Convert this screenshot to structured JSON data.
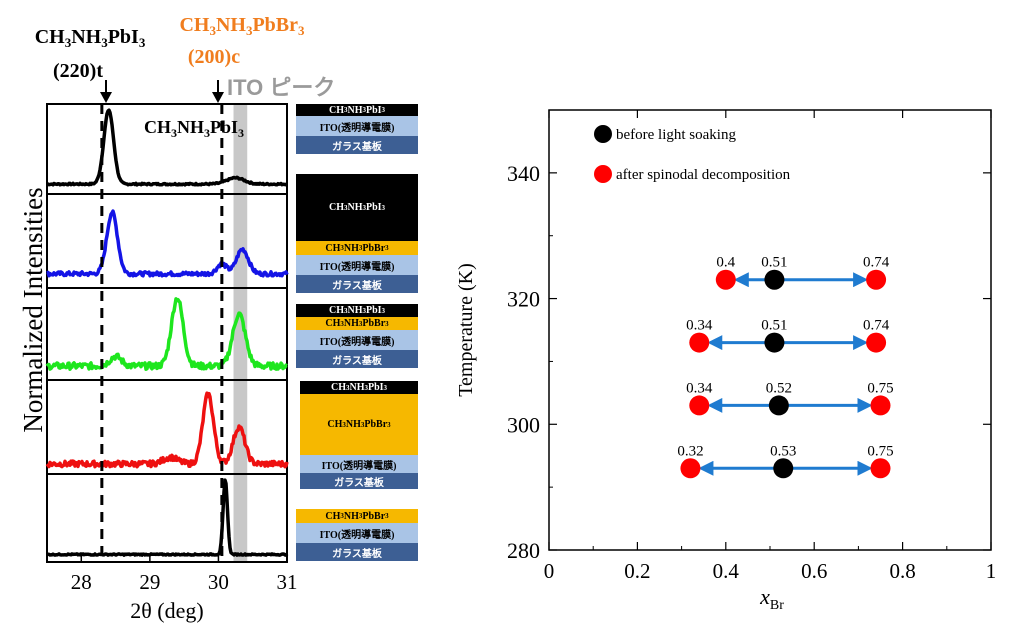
{
  "left_panel": {
    "ylabel": "Normalized Intensities",
    "xlabel": "2θ (deg)",
    "xticks": [
      "28",
      "29",
      "30",
      "31"
    ],
    "annotations": {
      "mapi_name": "CH3NH3PbI3",
      "mapi_peak": "(220)t",
      "mapbbr_name": "CH3NH3PbBr3",
      "mapbbr_peak": "(200)c",
      "ito_peak": "ITO ピーク",
      "panel1_label": "CH3NH3PbI3"
    },
    "colors": {
      "mapbbr_label": "#f07d1e",
      "ito_label": "#9a9a9a",
      "ito_band": "#c8c8c8",
      "traces": [
        "#000000",
        "#1414e6",
        "#1ee61e",
        "#ee1010",
        "#000000"
      ]
    }
  },
  "stacks": [
    {
      "layers": [
        {
          "text": "CH3NH3PbI3",
          "bg": "#000000",
          "fg": "#ffffff",
          "h": 12
        },
        {
          "text": "ITO(透明導電膜)",
          "bg": "#a9c4e6",
          "fg": "#000000",
          "h": 20
        },
        {
          "text": "ガラス基板",
          "bg": "#3d5f94",
          "fg": "#ffffff",
          "h": 18
        }
      ]
    },
    {
      "layers": [
        {
          "text": "CH3NH3PbI3",
          "bg": "#000000",
          "fg": "#ffffff",
          "h": 67
        },
        {
          "text": "CH3NH3PbBr3",
          "bg": "#f6b800",
          "fg": "#000000",
          "h": 14
        },
        {
          "text": "ITO(透明導電膜)",
          "bg": "#a9c4e6",
          "fg": "#000000",
          "h": 20
        },
        {
          "text": "ガラス基板",
          "bg": "#3d5f94",
          "fg": "#ffffff",
          "h": 18
        }
      ]
    },
    {
      "layers": [
        {
          "text": "CH3NH3PbI3",
          "bg": "#000000",
          "fg": "#ffffff",
          "h": 13
        },
        {
          "text": "CH3NH3PbBr3",
          "bg": "#f6b800",
          "fg": "#000000",
          "h": 13
        },
        {
          "text": "ITO(透明導電膜)",
          "bg": "#a9c4e6",
          "fg": "#000000",
          "h": 20
        },
        {
          "text": "ガラス基板",
          "bg": "#3d5f94",
          "fg": "#ffffff",
          "h": 18
        }
      ]
    },
    {
      "layers": [
        {
          "text": "CH3NH3PbI3",
          "bg": "#000000",
          "fg": "#ffffff",
          "h": 13
        },
        {
          "text": "CH3NH3PbBr3",
          "bg": "#f6b800",
          "fg": "#000000",
          "h": 61
        },
        {
          "text": "ITO(透明導電膜)",
          "bg": "#a9c4e6",
          "fg": "#000000",
          "h": 18
        },
        {
          "text": "ガラス基板",
          "bg": "#3d5f94",
          "fg": "#ffffff",
          "h": 16
        }
      ]
    },
    {
      "layers": [
        {
          "text": "CH3NH3PbBr3",
          "bg": "#f6b800",
          "fg": "#000000",
          "h": 14
        },
        {
          "text": "ITO(透明導電膜)",
          "bg": "#a9c4e6",
          "fg": "#000000",
          "h": 20
        },
        {
          "text": "ガラス基板",
          "bg": "#3d5f94",
          "fg": "#ffffff",
          "h": 18
        }
      ]
    }
  ],
  "chart_data": [
    {
      "type": "line",
      "title": "",
      "xlabel": "2θ (deg)",
      "ylabel": "Normalized Intensities",
      "xlim": [
        27.5,
        31
      ],
      "xticks": [
        28,
        29,
        30,
        31
      ],
      "reference_lines": {
        "CH3NH3PbI3 (220)t": 28.3,
        "CH3NH3PbBr3 (200)c": 30.05
      },
      "ito_band": [
        30.22,
        30.42
      ],
      "series": [
        {
          "peaks": [
            {
              "x": 28.4,
              "height": 0.95,
              "width": 0.1
            },
            {
              "x": 30.25,
              "height": 0.08,
              "width": 0.18
            }
          ],
          "baseline": 0.05,
          "noise": 0.01
        },
        {
          "peaks": [
            {
              "x": 28.45,
              "height": 0.75,
              "width": 0.11
            },
            {
              "x": 30.35,
              "height": 0.3,
              "width": 0.12
            },
            {
              "x": 30.05,
              "height": 0.12,
              "width": 0.1
            }
          ],
          "baseline": 0.1,
          "noise": 0.025
        },
        {
          "peaks": [
            {
              "x": 29.4,
              "height": 0.85,
              "width": 0.12
            },
            {
              "x": 30.3,
              "height": 0.65,
              "width": 0.13
            },
            {
              "x": 28.5,
              "height": 0.12,
              "width": 0.12
            }
          ],
          "baseline": 0.1,
          "noise": 0.04
        },
        {
          "peaks": [
            {
              "x": 29.85,
              "height": 0.85,
              "width": 0.11
            },
            {
              "x": 30.3,
              "height": 0.45,
              "width": 0.12
            },
            {
              "x": 29.3,
              "height": 0.08,
              "width": 0.15
            }
          ],
          "baseline": 0.05,
          "noise": 0.035
        },
        {
          "peaks": [
            {
              "x": 30.1,
              "height": 0.98,
              "width": 0.045
            }
          ],
          "baseline": 0.02,
          "noise": 0.008
        }
      ]
    },
    {
      "type": "scatter",
      "title": "",
      "xlabel": "x_Br",
      "ylabel": "Temperature (K)",
      "xlim": [
        0,
        1
      ],
      "ylim": [
        280,
        350
      ],
      "xticks": [
        "0",
        "0.2",
        "0.4",
        "0.6",
        "0.8",
        "1"
      ],
      "yticks": [
        "280",
        "300",
        "320",
        "340"
      ],
      "legend": [
        {
          "label": "before light soaking",
          "color": "#000000"
        },
        {
          "label": "after spinodal decomposition",
          "color": "#ff0000"
        }
      ],
      "rows": [
        {
          "T": 323,
          "before": 0.51,
          "after": [
            0.4,
            0.74
          ],
          "labels": [
            "0.4",
            "0.51",
            "0.74"
          ]
        },
        {
          "T": 313,
          "before": 0.51,
          "after": [
            0.34,
            0.74
          ],
          "labels": [
            "0.34",
            "0.51",
            "0.74"
          ]
        },
        {
          "T": 303,
          "before": 0.52,
          "after": [
            0.34,
            0.75
          ],
          "labels": [
            "0.34",
            "0.52",
            "0.75"
          ]
        },
        {
          "T": 293,
          "before": 0.53,
          "after": [
            0.32,
            0.75
          ],
          "labels": [
            "0.32",
            "0.53",
            "0.75"
          ]
        }
      ],
      "arrow_color": "#1f7bd0"
    }
  ]
}
